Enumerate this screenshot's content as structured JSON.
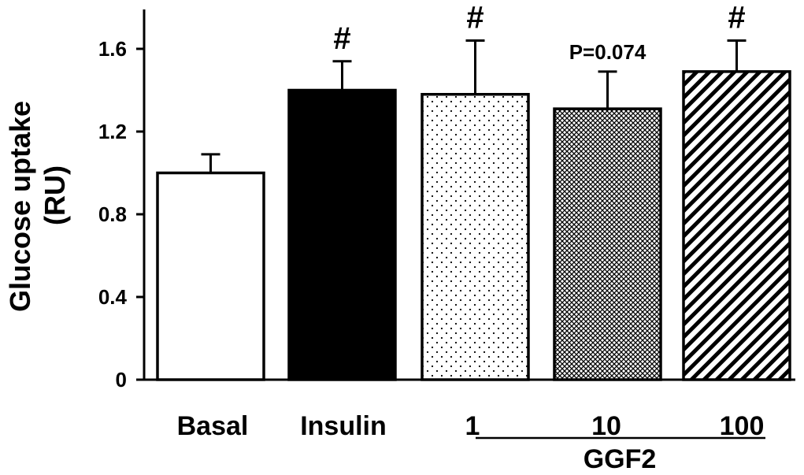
{
  "chart_data": {
    "type": "bar",
    "categories": [
      "Basal",
      "Insulin",
      "1",
      "10",
      "100"
    ],
    "values": [
      1.0,
      1.4,
      1.38,
      1.31,
      1.49
    ],
    "errors": [
      0.09,
      0.14,
      0.26,
      0.18,
      0.15
    ],
    "fills": [
      "white",
      "black",
      "dots",
      "crosshatch",
      "diagonal-stripes"
    ],
    "annotations": [
      "",
      "#",
      "#",
      "P=0.074",
      "#"
    ],
    "group_label": "GGF2",
    "group_members": [
      "1",
      "10",
      "100"
    ],
    "ylabel_lines": [
      "Glucose uptake",
      "(RU)"
    ],
    "ylim": [
      0,
      1.8
    ],
    "yticks": [
      "0",
      "0.4",
      "0.8",
      "1.2",
      "1.6"
    ],
    "grid": false,
    "colors": {
      "bar_edge": "#000000",
      "fill_dark": "#000000",
      "fill_light": "#ffffff"
    }
  }
}
